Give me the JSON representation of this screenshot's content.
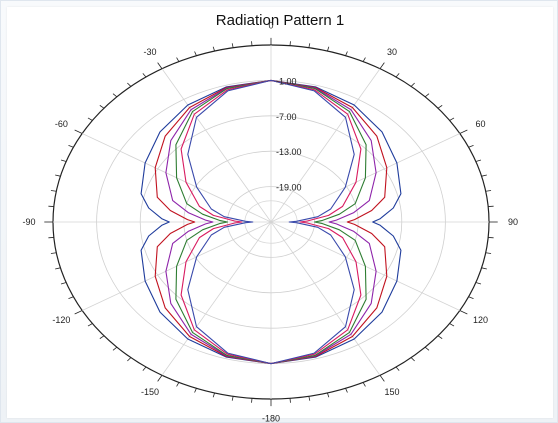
{
  "chart_data": {
    "type": "polar-line",
    "title": "Radiation Pattern 1",
    "angle_tick_labels": [
      "0",
      "30",
      "60",
      "90",
      "120",
      "150",
      "-180",
      "-150",
      "-120",
      "-90",
      "-60",
      "-30"
    ],
    "angle_ticks_deg": [
      0,
      30,
      60,
      90,
      120,
      150,
      180,
      -150,
      -120,
      -90,
      -60,
      -30
    ],
    "radial_tick_labels": [
      "-1.00",
      "-7.00",
      "-13.00",
      "-19.00"
    ],
    "radial_ticks": [
      -1,
      -7,
      -13,
      -19
    ],
    "r_range": [
      -25,
      5
    ],
    "grid": true,
    "legend": "none",
    "colors": [
      "#1f3c9c",
      "#c1121f",
      "#8e24aa",
      "#2e7d32",
      "#d81b60",
      "#3949ab",
      "#6a1b9a",
      "#b71c1c",
      "#00838f",
      "#5d4037",
      "#ad1457",
      "#283593",
      "#e65100",
      "#4a148c",
      "#0d47a1",
      "#880e4f"
    ],
    "series": [
      {
        "values": [
          [
            0,
            -1
          ],
          [
            15,
            -1.3
          ],
          [
            30,
            -2.1
          ],
          [
            45,
            -3.4
          ],
          [
            60,
            -5
          ],
          [
            75,
            -6.5
          ],
          [
            82,
            -8
          ],
          [
            88,
            -10
          ],
          [
            90,
            -11
          ],
          [
            92,
            -10
          ],
          [
            98,
            -8
          ],
          [
            105,
            -6.5
          ],
          [
            120,
            -5
          ],
          [
            135,
            -3.4
          ],
          [
            150,
            -2.1
          ],
          [
            165,
            -1.3
          ],
          [
            180,
            -1
          ],
          [
            195,
            -1.3
          ],
          [
            210,
            -2.1
          ],
          [
            225,
            -3.4
          ],
          [
            240,
            -5
          ],
          [
            255,
            -6.5
          ],
          [
            262,
            -8
          ],
          [
            268,
            -10
          ],
          [
            270,
            -11
          ],
          [
            272,
            -10
          ],
          [
            278,
            -8
          ],
          [
            285,
            -6.5
          ],
          [
            300,
            -5
          ],
          [
            315,
            -3.4
          ],
          [
            330,
            -2.1
          ],
          [
            345,
            -1.3
          ],
          [
            360,
            -1
          ]
        ]
      },
      {
        "values": [
          [
            0,
            -1
          ],
          [
            15,
            -1.4
          ],
          [
            30,
            -2.6
          ],
          [
            45,
            -4.4
          ],
          [
            60,
            -6.6
          ],
          [
            75,
            -8.8
          ],
          [
            82,
            -11
          ],
          [
            88,
            -13.5
          ],
          [
            90,
            -14.5
          ],
          [
            92,
            -13.5
          ],
          [
            98,
            -11
          ],
          [
            105,
            -8.8
          ],
          [
            120,
            -6.6
          ],
          [
            135,
            -4.4
          ],
          [
            150,
            -2.6
          ],
          [
            165,
            -1.4
          ],
          [
            180,
            -1
          ],
          [
            195,
            -1.4
          ],
          [
            210,
            -2.6
          ],
          [
            225,
            -4.4
          ],
          [
            240,
            -6.6
          ],
          [
            255,
            -8.8
          ],
          [
            262,
            -11
          ],
          [
            268,
            -13.5
          ],
          [
            270,
            -14.5
          ],
          [
            272,
            -13.5
          ],
          [
            278,
            -11
          ],
          [
            285,
            -8.8
          ],
          [
            300,
            -6.6
          ],
          [
            315,
            -4.4
          ],
          [
            330,
            -2.6
          ],
          [
            345,
            -1.4
          ],
          [
            360,
            -1
          ]
        ]
      },
      {
        "values": [
          [
            0,
            -1
          ],
          [
            15,
            -1.5
          ],
          [
            30,
            -3
          ],
          [
            45,
            -5.5
          ],
          [
            60,
            -8.3
          ],
          [
            75,
            -11
          ],
          [
            82,
            -13.5
          ],
          [
            88,
            -16
          ],
          [
            90,
            -17
          ],
          [
            92,
            -16
          ],
          [
            98,
            -13.5
          ],
          [
            105,
            -11
          ],
          [
            120,
            -8.3
          ],
          [
            135,
            -5.5
          ],
          [
            150,
            -3
          ],
          [
            165,
            -1.5
          ],
          [
            180,
            -1
          ],
          [
            195,
            -1.5
          ],
          [
            210,
            -3
          ],
          [
            225,
            -5.5
          ],
          [
            240,
            -8.3
          ],
          [
            255,
            -11
          ],
          [
            262,
            -13.5
          ],
          [
            268,
            -16
          ],
          [
            270,
            -17
          ],
          [
            272,
            -16
          ],
          [
            278,
            -13.5
          ],
          [
            285,
            -11
          ],
          [
            300,
            -8.3
          ],
          [
            315,
            -5.5
          ],
          [
            330,
            -3
          ],
          [
            345,
            -1.5
          ],
          [
            360,
            -1
          ]
        ]
      },
      {
        "values": [
          [
            0,
            -1
          ],
          [
            15,
            -1.6
          ],
          [
            30,
            -3.4
          ],
          [
            45,
            -6.5
          ],
          [
            60,
            -10
          ],
          [
            75,
            -13
          ],
          [
            82,
            -15.5
          ],
          [
            88,
            -18
          ],
          [
            90,
            -19
          ],
          [
            92,
            -18
          ],
          [
            98,
            -15.5
          ],
          [
            105,
            -13
          ],
          [
            120,
            -10
          ],
          [
            135,
            -6.5
          ],
          [
            150,
            -3.4
          ],
          [
            165,
            -1.6
          ],
          [
            180,
            -1
          ],
          [
            195,
            -1.6
          ],
          [
            210,
            -3.4
          ],
          [
            225,
            -6.5
          ],
          [
            240,
            -10
          ],
          [
            255,
            -13
          ],
          [
            262,
            -15.5
          ],
          [
            268,
            -18
          ],
          [
            270,
            -19
          ],
          [
            272,
            -18
          ],
          [
            278,
            -15.5
          ],
          [
            285,
            -13
          ],
          [
            300,
            -10
          ],
          [
            315,
            -6.5
          ],
          [
            330,
            -3.4
          ],
          [
            345,
            -1.6
          ],
          [
            360,
            -1
          ]
        ]
      },
      {
        "values": [
          [
            0,
            -1
          ],
          [
            15,
            -1.8
          ],
          [
            30,
            -3.9
          ],
          [
            45,
            -7.5
          ],
          [
            60,
            -11.5
          ],
          [
            75,
            -14.8
          ],
          [
            82,
            -17
          ],
          [
            88,
            -20
          ],
          [
            90,
            -21
          ],
          [
            92,
            -20
          ],
          [
            98,
            -17
          ],
          [
            105,
            -14.8
          ],
          [
            120,
            -11.5
          ],
          [
            135,
            -7.5
          ],
          [
            150,
            -3.9
          ],
          [
            165,
            -1.8
          ],
          [
            180,
            -1
          ],
          [
            195,
            -1.8
          ],
          [
            210,
            -3.9
          ],
          [
            225,
            -7.5
          ],
          [
            240,
            -11.5
          ],
          [
            255,
            -14.8
          ],
          [
            262,
            -17
          ],
          [
            268,
            -20
          ],
          [
            270,
            -21
          ],
          [
            272,
            -20
          ],
          [
            278,
            -17
          ],
          [
            285,
            -14.8
          ],
          [
            300,
            -11.5
          ],
          [
            315,
            -7.5
          ],
          [
            330,
            -3.9
          ],
          [
            345,
            -1.8
          ],
          [
            360,
            -1
          ]
        ]
      },
      {
        "values": [
          [
            0,
            -1
          ],
          [
            15,
            -2
          ],
          [
            30,
            -4.5
          ],
          [
            45,
            -8.8
          ],
          [
            60,
            -13.2
          ],
          [
            75,
            -16.5
          ],
          [
            82,
            -18.5
          ],
          [
            88,
            -21.5
          ],
          [
            90,
            -22.5
          ],
          [
            92,
            -21.5
          ],
          [
            98,
            -18.5
          ],
          [
            105,
            -16.5
          ],
          [
            120,
            -13.2
          ],
          [
            135,
            -8.8
          ],
          [
            150,
            -4.5
          ],
          [
            165,
            -2
          ],
          [
            180,
            -1
          ],
          [
            195,
            -2
          ],
          [
            210,
            -4.5
          ],
          [
            225,
            -8.8
          ],
          [
            240,
            -13.2
          ],
          [
            255,
            -16.5
          ],
          [
            262,
            -18.5
          ],
          [
            268,
            -21.5
          ],
          [
            270,
            -22.5
          ],
          [
            272,
            -21.5
          ],
          [
            278,
            -18.5
          ],
          [
            285,
            -16.5
          ],
          [
            300,
            -13.2
          ],
          [
            315,
            -8.8
          ],
          [
            330,
            -4.5
          ],
          [
            345,
            -2
          ],
          [
            360,
            -1
          ]
        ]
      }
    ]
  }
}
